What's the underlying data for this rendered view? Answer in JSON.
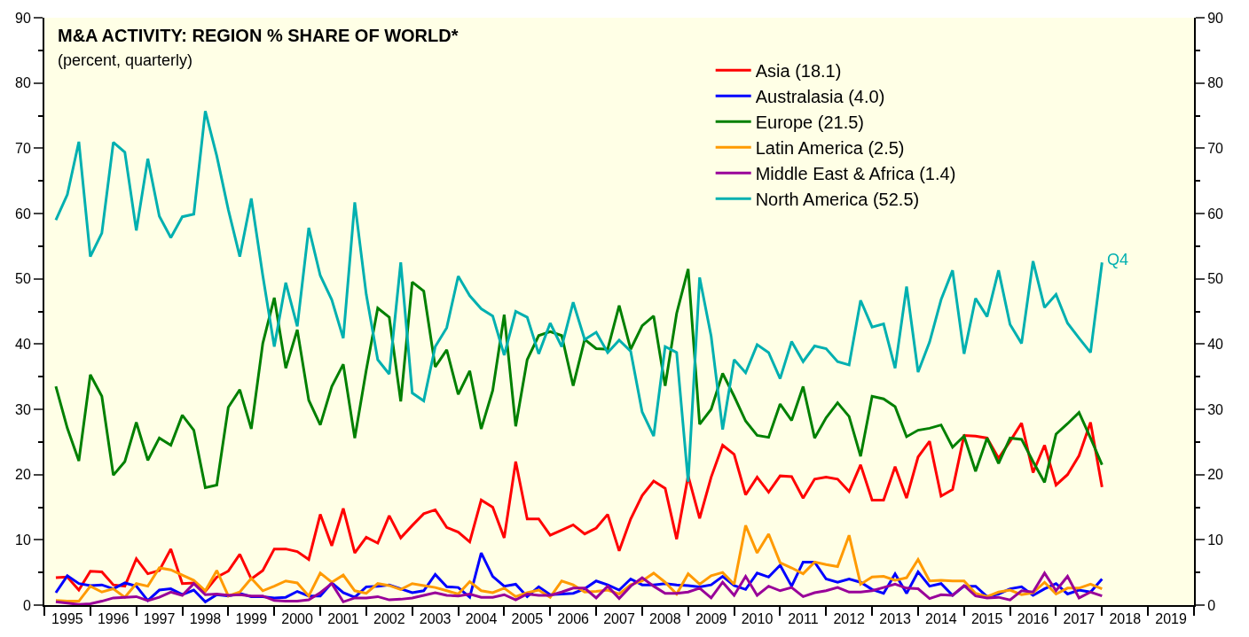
{
  "chart_data": {
    "type": "line",
    "title": "M&A ACTIVITY: REGION % SHARE OF WORLD*",
    "subtitle": "(percent, quarterly)",
    "x": [
      1995.25,
      1995.5,
      1995.75,
      1996,
      1996.25,
      1996.5,
      1996.75,
      1997,
      1997.25,
      1997.5,
      1997.75,
      1998,
      1998.25,
      1998.5,
      1998.75,
      1999,
      1999.25,
      1999.5,
      1999.75,
      2000,
      2000.25,
      2000.5,
      2000.75,
      2001,
      2001.25,
      2001.5,
      2001.75,
      2002,
      2002.25,
      2002.5,
      2002.75,
      2003,
      2003.25,
      2003.5,
      2003.75,
      2004,
      2004.25,
      2004.5,
      2004.75,
      2005,
      2005.25,
      2005.5,
      2005.75,
      2006,
      2006.25,
      2006.5,
      2006.75,
      2007,
      2007.25,
      2007.5,
      2007.75,
      2008,
      2008.25,
      2008.5,
      2008.75,
      2009,
      2009.25,
      2009.5,
      2009.75,
      2010,
      2010.25,
      2010.5,
      2010.75,
      2011,
      2011.25,
      2011.5,
      2011.75,
      2012,
      2012.25,
      2012.5,
      2012.75,
      2013,
      2013.25,
      2013.5,
      2013.75,
      2014,
      2014.25,
      2014.5,
      2014.75,
      2015,
      2015.25,
      2015.5,
      2015.75,
      2016,
      2016.25,
      2016.5,
      2016.75,
      2017,
      2017.25,
      2017.5,
      2017.75,
      2018
    ],
    "series": [
      {
        "name": "Asia (18.1)",
        "color": "#ff0000",
        "values": [
          4.2,
          4.3,
          2.3,
          5.2,
          5.1,
          3.1,
          2.9,
          7.1,
          4.8,
          5.3,
          8.6,
          3.3,
          3.4,
          2.1,
          4.3,
          5.2,
          7.8,
          4.0,
          5.3,
          8.6,
          8.6,
          8.2,
          7.0,
          13.9,
          9.1,
          14.8,
          8.0,
          10.4,
          9.5,
          13.7,
          10.3,
          12.2,
          14.0,
          14.6,
          11.9,
          11.2,
          9.7,
          16.1,
          15.0,
          10.3,
          22.0,
          13.2,
          13.2,
          10.7,
          11.5,
          12.3,
          10.9,
          11.8,
          13.9,
          8.3,
          13.2,
          16.8,
          19.0,
          17.9,
          10.1,
          19.8,
          13.3,
          19.6,
          24.5,
          23.1,
          16.9,
          19.6,
          17.3,
          19.8,
          19.7,
          16.4,
          19.3,
          19.6,
          19.3,
          17.4,
          21.5,
          16.1,
          16.1,
          21.2,
          16.4,
          22.7,
          25.1,
          16.7,
          17.7,
          26.0,
          25.9,
          25.6,
          22.5,
          25.1,
          27.9,
          20.3,
          24.5,
          18.4,
          20.0,
          22.9,
          28.0,
          18.1
        ]
      },
      {
        "name": "Australasia (4.0)",
        "color": "#0000ff",
        "values": [
          1.9,
          4.5,
          3.3,
          3.0,
          3.1,
          2.5,
          3.4,
          2.9,
          0.7,
          2.3,
          2.5,
          1.6,
          2.3,
          0.5,
          1.6,
          1.4,
          1.8,
          1.3,
          1.3,
          1.1,
          1.2,
          2.1,
          1.4,
          1.4,
          3.4,
          1.9,
          1.2,
          2.8,
          2.9,
          3.1,
          2.5,
          1.9,
          2.2,
          4.7,
          2.8,
          2.7,
          1.2,
          8.0,
          4.4,
          2.9,
          3.2,
          1.3,
          2.8,
          1.6,
          1.7,
          1.8,
          2.5,
          3.7,
          3.1,
          2.3,
          4.0,
          3.1,
          3.1,
          3.3,
          3.1,
          3.0,
          2.8,
          3.1,
          4.4,
          3.0,
          2.4,
          4.9,
          4.3,
          6.1,
          2.9,
          6.6,
          6.6,
          4.0,
          3.5,
          4.0,
          3.5,
          2.4,
          1.8,
          4.8,
          1.8,
          5.1,
          2.9,
          3.3,
          1.5,
          2.9,
          2.9,
          1.3,
          1.7,
          2.5,
          2.8,
          1.5,
          2.5,
          3.3,
          1.7,
          2.3,
          2.0,
          4.0
        ]
      },
      {
        "name": "Europe (21.5)",
        "color": "#008000",
        "values": [
          33.5,
          27.1,
          22.1,
          35.3,
          32.0,
          19.9,
          22.0,
          28.0,
          22.2,
          25.6,
          24.5,
          29.1,
          26.8,
          18.0,
          18.4,
          30.3,
          33.0,
          27.0,
          40.1,
          47.1,
          36.3,
          42.2,
          31.4,
          27.6,
          33.5,
          36.9,
          25.6,
          36.0,
          45.5,
          44.1,
          31.2,
          49.5,
          48.1,
          36.5,
          39.1,
          32.3,
          35.9,
          27.0,
          32.9,
          44.5,
          27.4,
          37.6,
          41.3,
          41.9,
          41.3,
          33.6,
          40.7,
          39.3,
          39.2,
          45.9,
          39.2,
          42.8,
          44.3,
          33.6,
          44.7,
          51.5,
          27.7,
          30.0,
          35.5,
          32.0,
          28.2,
          26.0,
          25.7,
          30.8,
          28.3,
          33.5,
          25.6,
          28.7,
          31.0,
          28.9,
          22.8,
          32.0,
          31.6,
          30.4,
          25.8,
          26.8,
          27.1,
          27.6,
          24.2,
          25.9,
          20.5,
          25.6,
          21.7,
          25.6,
          25.4,
          22.0,
          18.8,
          26.2,
          27.8,
          29.5,
          25.6,
          21.5
        ]
      },
      {
        "name": "Latin America (2.5)",
        "color": "#ff9a00",
        "values": [
          0.7,
          0.6,
          0.6,
          2.9,
          2.0,
          2.5,
          1.2,
          3.3,
          2.9,
          5.7,
          5.4,
          4.6,
          3.8,
          2.2,
          5.3,
          1.4,
          2.0,
          4.1,
          2.2,
          2.9,
          3.7,
          3.4,
          1.4,
          4.9,
          3.5,
          4.6,
          2.2,
          1.8,
          3.3,
          3.0,
          2.4,
          3.3,
          3.0,
          2.7,
          2.2,
          1.7,
          3.6,
          2.2,
          1.9,
          2.6,
          1.3,
          1.9,
          2.3,
          1.2,
          3.7,
          3.1,
          2.0,
          2.1,
          2.3,
          1.7,
          3.1,
          3.7,
          4.9,
          3.5,
          1.7,
          4.8,
          3.2,
          4.5,
          5.0,
          3.2,
          12.2,
          8.0,
          10.9,
          6.5,
          5.7,
          4.8,
          6.6,
          6.2,
          5.9,
          10.7,
          3.2,
          4.3,
          4.4,
          3.8,
          4.2,
          7.0,
          3.7,
          3.8,
          3.7,
          3.7,
          1.8,
          1.3,
          2.0,
          2.3,
          1.6,
          1.9,
          3.5,
          1.7,
          2.6,
          2.6,
          3.2,
          2.5
        ]
      },
      {
        "name": "Middle East & Africa (1.4)",
        "color": "#990099",
        "values": [
          0.5,
          0.3,
          0.1,
          0.2,
          0.6,
          1.1,
          1.2,
          1.3,
          0.7,
          1.2,
          2.0,
          1.5,
          3.3,
          1.6,
          1.7,
          1.5,
          1.6,
          1.4,
          1.4,
          0.7,
          0.6,
          0.6,
          0.8,
          1.9,
          3.3,
          0.5,
          1.1,
          1.1,
          1.3,
          0.8,
          0.9,
          1.1,
          1.5,
          1.9,
          1.5,
          1.4,
          1.7,
          1.2,
          1.2,
          1.6,
          0.8,
          1.7,
          1.5,
          1.5,
          2.0,
          2.6,
          2.6,
          1.1,
          2.9,
          1.0,
          2.9,
          4.2,
          2.9,
          1.8,
          1.8,
          2.0,
          2.6,
          1.1,
          3.5,
          1.5,
          4.4,
          1.5,
          2.9,
          2.2,
          2.7,
          1.3,
          1.9,
          2.2,
          2.7,
          2.0,
          2.0,
          2.2,
          2.7,
          3.2,
          2.6,
          2.5,
          1.0,
          1.6,
          1.5,
          3.0,
          1.4,
          1.1,
          1.2,
          0.8,
          2.2,
          2.0,
          4.9,
          2.2,
          4.4,
          1.1,
          2.0,
          1.4
        ]
      },
      {
        "name": "North America (52.5)",
        "color": "#00b0b0",
        "values": [
          59.0,
          62.9,
          71.0,
          53.4,
          57.0,
          70.9,
          69.4,
          57.4,
          68.4,
          59.6,
          56.3,
          59.5,
          59.9,
          75.7,
          68.8,
          60.6,
          53.4,
          62.3,
          50.5,
          39.6,
          49.4,
          42.7,
          57.8,
          50.5,
          46.8,
          40.9,
          61.7,
          47.6,
          37.6,
          35.4,
          52.5,
          32.5,
          31.3,
          39.6,
          42.5,
          50.4,
          47.4,
          45.4,
          44.3,
          38.3,
          45.0,
          44.1,
          38.5,
          43.2,
          39.6,
          46.4,
          40.7,
          41.8,
          38.7,
          40.6,
          38.9,
          29.6,
          25.9,
          39.6,
          38.7,
          18.9,
          50.2,
          41.2,
          26.9,
          37.6,
          35.6,
          39.9,
          38.7,
          34.7,
          40.4,
          37.3,
          39.7,
          39.3,
          37.3,
          36.8,
          46.7,
          42.6,
          43.1,
          36.3,
          48.8,
          35.7,
          40.3,
          46.8,
          51.3,
          38.5,
          47.0,
          44.2,
          51.3,
          43.0,
          40.1,
          52.7,
          45.6,
          47.6,
          43.2,
          40.9,
          38.7,
          52.5
        ]
      }
    ],
    "xlim": [
      1995,
      2020
    ],
    "xticks": [
      {
        "value": 1995,
        "label": null
      },
      {
        "value": 1995.5,
        "label": "1995"
      },
      {
        "value": 1996,
        "label": null
      },
      {
        "value": 1996.5,
        "label": "1996"
      },
      {
        "value": 1997,
        "label": null
      },
      {
        "value": 1997.5,
        "label": "1997"
      },
      {
        "value": 1998,
        "label": null
      },
      {
        "value": 1998.5,
        "label": "1998"
      },
      {
        "value": 1999,
        "label": null
      },
      {
        "value": 1999.5,
        "label": "1999"
      },
      {
        "value": 2000,
        "label": null
      },
      {
        "value": 2000.5,
        "label": "2000"
      },
      {
        "value": 2001,
        "label": null
      },
      {
        "value": 2001.5,
        "label": "2001"
      },
      {
        "value": 2002,
        "label": null
      },
      {
        "value": 2002.5,
        "label": "2002"
      },
      {
        "value": 2003,
        "label": null
      },
      {
        "value": 2003.5,
        "label": "2003"
      },
      {
        "value": 2004,
        "label": null
      },
      {
        "value": 2004.5,
        "label": "2004"
      },
      {
        "value": 2005,
        "label": null
      },
      {
        "value": 2005.5,
        "label": "2005"
      },
      {
        "value": 2006,
        "label": null
      },
      {
        "value": 2006.5,
        "label": "2006"
      },
      {
        "value": 2007,
        "label": null
      },
      {
        "value": 2007.5,
        "label": "2007"
      },
      {
        "value": 2008,
        "label": null
      },
      {
        "value": 2008.5,
        "label": "2008"
      },
      {
        "value": 2009,
        "label": null
      },
      {
        "value": 2009.5,
        "label": "2009"
      },
      {
        "value": 2010,
        "label": null
      },
      {
        "value": 2010.5,
        "label": "2010"
      },
      {
        "value": 2011,
        "label": null
      },
      {
        "value": 2011.5,
        "label": "2011"
      },
      {
        "value": 2012,
        "label": null
      },
      {
        "value": 2012.5,
        "label": "2012"
      },
      {
        "value": 2013,
        "label": null
      },
      {
        "value": 2013.5,
        "label": "2013"
      },
      {
        "value": 2014,
        "label": null
      },
      {
        "value": 2014.5,
        "label": "2014"
      },
      {
        "value": 2015,
        "label": null
      },
      {
        "value": 2015.5,
        "label": "2015"
      },
      {
        "value": 2016,
        "label": null
      },
      {
        "value": 2016.5,
        "label": "2016"
      },
      {
        "value": 2017,
        "label": null
      },
      {
        "value": 2017.5,
        "label": "2017"
      },
      {
        "value": 2018,
        "label": null
      },
      {
        "value": 2018.5,
        "label": "2018"
      },
      {
        "value": 2019,
        "label": null
      },
      {
        "value": 2019.5,
        "label": "2019"
      },
      {
        "value": 2020,
        "label": null
      }
    ],
    "ylim": [
      0,
      90
    ],
    "yticks": [
      0,
      {
        "value": 5,
        "label": null
      },
      10,
      {
        "value": 15,
        "label": null
      },
      20,
      {
        "value": 25,
        "label": null
      },
      30,
      {
        "value": 35,
        "label": null
      },
      40,
      {
        "value": 45,
        "label": null
      },
      50,
      {
        "value": 55,
        "label": null
      },
      60,
      {
        "value": 65,
        "label": null
      },
      70,
      {
        "value": 75,
        "label": null
      },
      80,
      {
        "value": 85,
        "label": null
      },
      90
    ],
    "y2lim": [
      0,
      90
    ],
    "y2ticks": [
      0,
      {
        "value": 5,
        "label": null
      },
      10,
      {
        "value": 15,
        "label": null
      },
      20,
      {
        "value": 25,
        "label": null
      },
      30,
      {
        "value": 35,
        "label": null
      },
      40,
      {
        "value": 45,
        "label": null
      },
      50,
      {
        "value": 55,
        "label": null
      },
      60,
      {
        "value": 65,
        "label": null
      },
      70,
      {
        "value": 75,
        "label": null
      },
      80,
      {
        "value": 85,
        "label": null
      },
      90
    ],
    "annotations": [
      {
        "text": "Q4",
        "x": 2018,
        "y": 52.5
      }
    ],
    "legend": "top right",
    "grid": false,
    "marker": "none",
    "line_style": "solid"
  }
}
